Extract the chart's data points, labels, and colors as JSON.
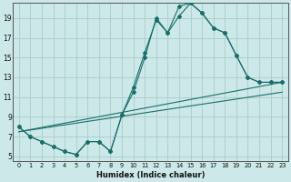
{
  "xlabel": "Humidex (Indice chaleur)",
  "bg_color": "#cce8e8",
  "grid_color": "#aacccc",
  "line_color": "#1a6e6a",
  "xlim": [
    -0.5,
    23.5
  ],
  "ylim": [
    4.5,
    20.5
  ],
  "xticks": [
    0,
    1,
    2,
    3,
    4,
    5,
    6,
    7,
    8,
    9,
    10,
    11,
    12,
    13,
    14,
    15,
    16,
    17,
    18,
    19,
    20,
    21,
    22,
    23
  ],
  "yticks": [
    5,
    7,
    9,
    11,
    13,
    15,
    17,
    19
  ],
  "series": [
    {
      "x": [
        0,
        1,
        2,
        3,
        4,
        5,
        6,
        7,
        8,
        9,
        10,
        11,
        12,
        13,
        14,
        15,
        16,
        17,
        18,
        19,
        20,
        21,
        22,
        23
      ],
      "y": [
        8,
        7,
        6.5,
        6,
        5.5,
        5.2,
        6.5,
        6.5,
        5.5,
        9.2,
        11.5,
        15,
        19,
        17.5,
        20.2,
        20.5,
        19.5,
        18.0,
        17.5,
        15.2,
        13.0,
        12.5,
        12.5,
        12.5
      ],
      "markers": true
    },
    {
      "x": [
        0,
        1,
        2,
        3,
        4,
        5,
        6,
        7,
        8,
        9,
        10,
        11,
        12,
        13,
        14,
        15,
        16,
        17,
        18,
        19,
        20,
        21,
        22,
        23
      ],
      "y": [
        8,
        7,
        6.5,
        6,
        5.5,
        5.2,
        6.5,
        6.5,
        5.5,
        9.2,
        12.0,
        15.5,
        18.8,
        17.5,
        19.2,
        20.5,
        19.5,
        18.0,
        17.5,
        15.2,
        13.0,
        12.5,
        12.5,
        12.5
      ],
      "markers": true
    },
    {
      "x": [
        0,
        23
      ],
      "y": [
        7.5,
        12.5
      ],
      "markers": false
    },
    {
      "x": [
        0,
        23
      ],
      "y": [
        7.5,
        11.5
      ],
      "markers": false
    }
  ]
}
